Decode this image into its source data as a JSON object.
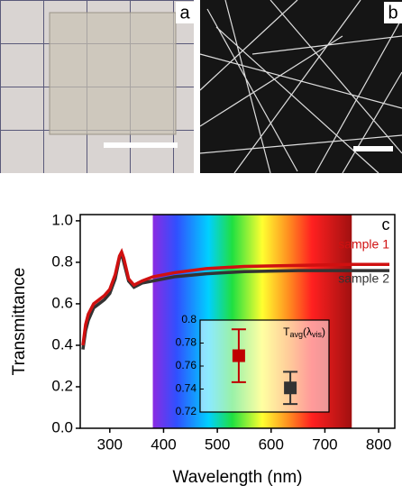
{
  "panels": {
    "a": "a",
    "b": "b"
  },
  "chart_data": {
    "type": "line",
    "panel_label": "c",
    "xlabel": "Wavelength (nm)",
    "ylabel": "Transmittance",
    "x": [
      250,
      255,
      260,
      270,
      280,
      290,
      300,
      310,
      318,
      322,
      326,
      335,
      345,
      360,
      380,
      420,
      480,
      550,
      650,
      750,
      820
    ],
    "series": [
      {
        "name": "sample 1",
        "color": "#d01010",
        "values": [
          0.4,
          0.5,
          0.55,
          0.6,
          0.62,
          0.64,
          0.67,
          0.74,
          0.83,
          0.85,
          0.82,
          0.72,
          0.69,
          0.71,
          0.73,
          0.75,
          0.77,
          0.78,
          0.785,
          0.79,
          0.79
        ]
      },
      {
        "name": "sample 2",
        "color": "#333333",
        "values": [
          0.38,
          0.47,
          0.52,
          0.58,
          0.6,
          0.62,
          0.65,
          0.72,
          0.82,
          0.84,
          0.8,
          0.71,
          0.68,
          0.7,
          0.71,
          0.73,
          0.745,
          0.755,
          0.76,
          0.76,
          0.76
        ]
      }
    ],
    "xlim": [
      245,
      830
    ],
    "xticks": [
      300,
      400,
      500,
      600,
      700,
      800
    ],
    "ylim": [
      0,
      1.03
    ],
    "yticks": [
      {
        "value": 0,
        "label": "0.0"
      },
      0.2,
      0.4,
      0.6,
      0.8,
      {
        "value": 1,
        "label": "1.0"
      }
    ],
    "shaded_region": [
      380,
      750
    ],
    "inset": {
      "type": "errorbar",
      "ylabel": [
        "T",
        "avg",
        "(λ",
        "vis",
        ")"
      ],
      "values": [
        0.769,
        0.741
      ],
      "errors": [
        0.023,
        0.014
      ],
      "colors": [
        "#c00000",
        "#333333"
      ],
      "ylim": [
        0.72,
        0.8
      ],
      "yticks": [
        0.72,
        0.74,
        0.76,
        0.78,
        0.8
      ]
    }
  }
}
